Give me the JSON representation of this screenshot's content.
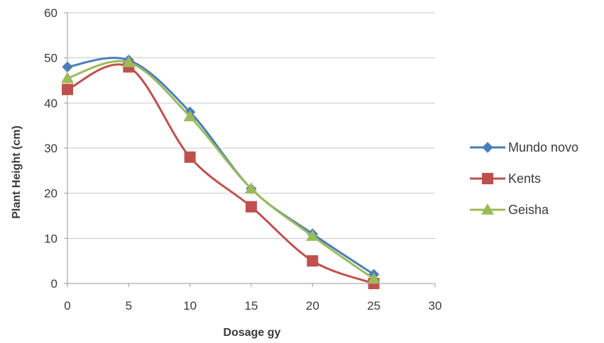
{
  "chart_data": {
    "type": "line",
    "title": "",
    "xlabel": "Dosage gy",
    "ylabel": "Plant Height (cm)",
    "xlim": [
      0,
      30
    ],
    "ylim": [
      0,
      60
    ],
    "xticks": [
      0,
      5,
      10,
      15,
      20,
      25,
      30
    ],
    "yticks": [
      0,
      10,
      20,
      30,
      40,
      50,
      60
    ],
    "grid": "horizontal",
    "legend_position": "right",
    "x": [
      0,
      5,
      10,
      15,
      20,
      25
    ],
    "series": [
      {
        "name": "Mundo novo",
        "color": "#4a7ebb",
        "marker": "diamond",
        "values": [
          48,
          49.5,
          38,
          21,
          11,
          2
        ]
      },
      {
        "name": "Kents",
        "color": "#c0504d",
        "marker": "square",
        "values": [
          43,
          48,
          28,
          17,
          5,
          0
        ]
      },
      {
        "name": "Geisha",
        "color": "#9bbb59",
        "marker": "triangle",
        "values": [
          45.5,
          49,
          37,
          21,
          10.5,
          1
        ]
      }
    ]
  }
}
